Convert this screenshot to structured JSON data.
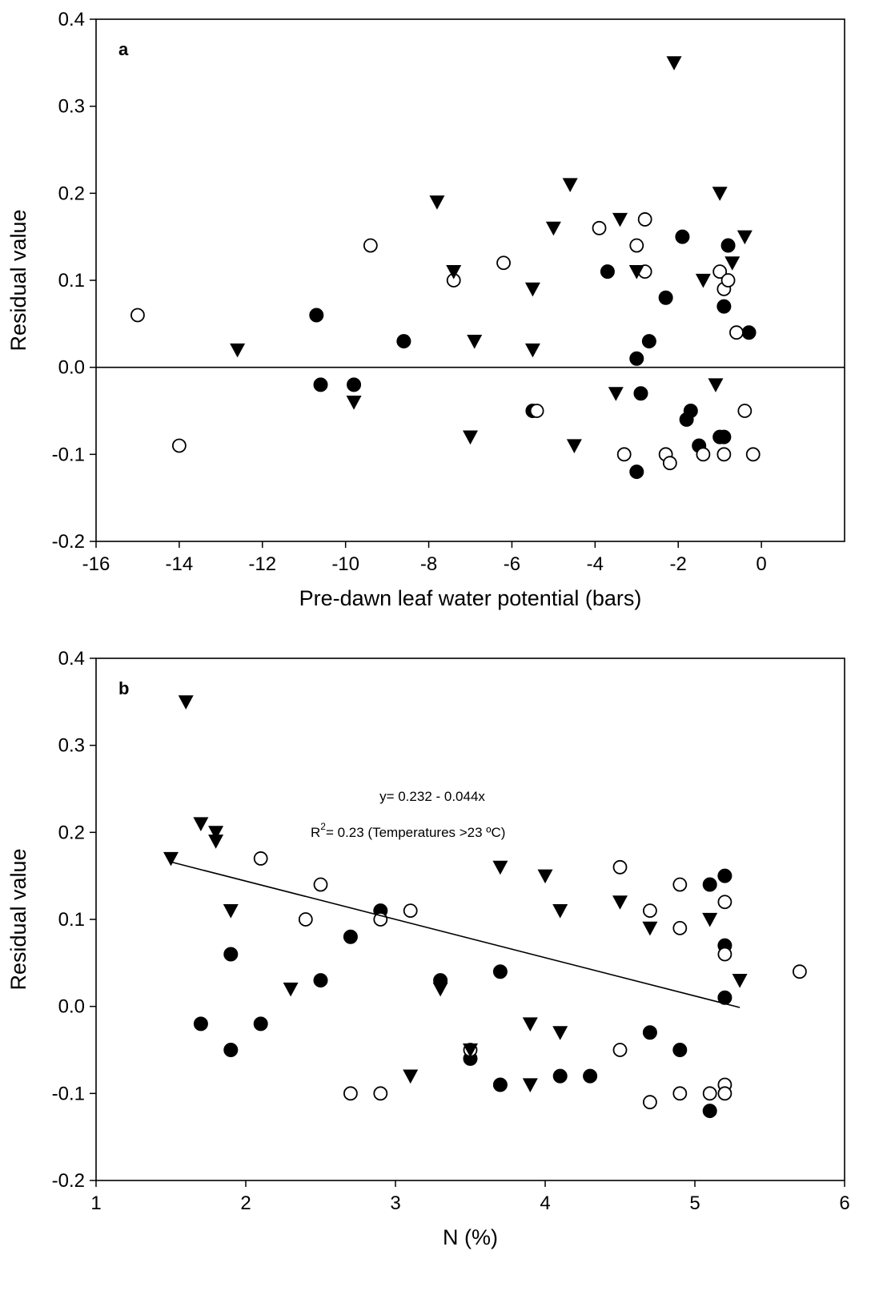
{
  "chart_data": [
    {
      "type": "scatter",
      "panel_label": "a",
      "xlabel": "Pre-dawn leaf water potential (bars)",
      "ylabel": "Residual value",
      "xlim": [
        -16,
        2
      ],
      "ylim": [
        -0.2,
        0.4
      ],
      "x_ticks": [
        -16,
        -14,
        -12,
        -10,
        -8,
        -6,
        -4,
        -2,
        0
      ],
      "y_ticks": [
        -0.2,
        -0.1,
        0.0,
        0.1,
        0.2,
        0.3,
        0.4
      ],
      "reference_line_y": 0,
      "grid": false,
      "series": [
        {
          "marker": "filled-circle",
          "points": [
            [
              -10.7,
              0.06
            ],
            [
              -10.6,
              -0.02
            ],
            [
              -9.8,
              -0.02
            ],
            [
              -8.6,
              0.03
            ],
            [
              -5.5,
              -0.05
            ],
            [
              -3.7,
              0.11
            ],
            [
              -3.0,
              0.01
            ],
            [
              -2.9,
              -0.03
            ],
            [
              -2.7,
              0.03
            ],
            [
              -2.3,
              0.08
            ],
            [
              -1.9,
              0.15
            ],
            [
              -1.8,
              -0.06
            ],
            [
              -1.7,
              -0.05
            ],
            [
              -1.5,
              -0.09
            ],
            [
              -1.0,
              -0.08
            ],
            [
              -0.9,
              -0.08
            ],
            [
              -0.9,
              0.07
            ],
            [
              -0.8,
              0.14
            ],
            [
              -0.3,
              0.04
            ],
            [
              -3.0,
              -0.12
            ]
          ]
        },
        {
          "marker": "open-circle",
          "points": [
            [
              -15.0,
              0.06
            ],
            [
              -14.0,
              -0.09
            ],
            [
              -9.4,
              0.14
            ],
            [
              -7.4,
              0.1
            ],
            [
              -6.2,
              0.12
            ],
            [
              -5.4,
              -0.05
            ],
            [
              -3.9,
              0.16
            ],
            [
              -3.3,
              -0.1
            ],
            [
              -3.0,
              0.14
            ],
            [
              -2.8,
              0.17
            ],
            [
              -2.8,
              0.11
            ],
            [
              -2.3,
              -0.1
            ],
            [
              -2.2,
              -0.11
            ],
            [
              -1.4,
              -0.1
            ],
            [
              -1.0,
              0.11
            ],
            [
              -0.9,
              0.09
            ],
            [
              -0.9,
              -0.1
            ],
            [
              -0.8,
              0.1
            ],
            [
              -0.6,
              0.04
            ],
            [
              -0.4,
              -0.05
            ],
            [
              -0.2,
              -0.1
            ]
          ]
        },
        {
          "marker": "filled-triangle-down",
          "points": [
            [
              -12.6,
              0.02
            ],
            [
              -9.8,
              -0.04
            ],
            [
              -7.8,
              0.19
            ],
            [
              -7.4,
              0.11
            ],
            [
              -7.0,
              -0.08
            ],
            [
              -6.9,
              0.03
            ],
            [
              -5.5,
              0.09
            ],
            [
              -5.5,
              0.02
            ],
            [
              -5.0,
              0.16
            ],
            [
              -4.6,
              0.21
            ],
            [
              -4.5,
              -0.09
            ],
            [
              -3.5,
              -0.03
            ],
            [
              -3.4,
              0.17
            ],
            [
              -3.0,
              0.11
            ],
            [
              -2.1,
              0.35
            ],
            [
              -1.4,
              0.1
            ],
            [
              -1.1,
              -0.02
            ],
            [
              -1.0,
              0.2
            ],
            [
              -0.7,
              0.12
            ],
            [
              -0.4,
              0.15
            ]
          ]
        }
      ]
    },
    {
      "type": "scatter",
      "panel_label": "b",
      "xlabel": "N (%)",
      "ylabel": "Residual value",
      "xlim": [
        1,
        6
      ],
      "ylim": [
        -0.2,
        0.4
      ],
      "x_ticks": [
        1,
        2,
        3,
        4,
        5,
        6
      ],
      "y_ticks": [
        -0.2,
        -0.1,
        0.0,
        0.1,
        0.2,
        0.3,
        0.4
      ],
      "grid": false,
      "annotations": [
        "y= 0.232 - 0.044x",
        "R",
        "2",
        "= 0.23 (Temperatures >23 ºC)"
      ],
      "fit_line": {
        "intercept": 0.232,
        "slope": -0.044,
        "x_range": [
          1.5,
          5.3
        ]
      },
      "series": [
        {
          "marker": "filled-circle",
          "points": [
            [
              1.7,
              -0.02
            ],
            [
              1.9,
              -0.05
            ],
            [
              1.9,
              0.06
            ],
            [
              2.1,
              -0.02
            ],
            [
              2.5,
              0.03
            ],
            [
              2.7,
              0.08
            ],
            [
              2.9,
              0.11
            ],
            [
              3.3,
              0.03
            ],
            [
              3.5,
              -0.06
            ],
            [
              3.7,
              0.04
            ],
            [
              3.7,
              -0.09
            ],
            [
              4.1,
              -0.08
            ],
            [
              4.3,
              -0.08
            ],
            [
              4.7,
              -0.03
            ],
            [
              4.9,
              -0.05
            ],
            [
              5.1,
              0.14
            ],
            [
              5.2,
              0.15
            ],
            [
              5.2,
              0.07
            ],
            [
              5.2,
              0.01
            ],
            [
              5.1,
              -0.12
            ]
          ]
        },
        {
          "marker": "open-circle",
          "points": [
            [
              2.1,
              0.17
            ],
            [
              2.4,
              0.1
            ],
            [
              2.5,
              0.14
            ],
            [
              2.7,
              -0.1
            ],
            [
              2.9,
              0.1
            ],
            [
              2.9,
              -0.1
            ],
            [
              3.1,
              0.11
            ],
            [
              3.5,
              -0.05
            ],
            [
              4.5,
              0.16
            ],
            [
              4.5,
              -0.05
            ],
            [
              4.7,
              0.11
            ],
            [
              4.7,
              -0.11
            ],
            [
              4.9,
              0.14
            ],
            [
              4.9,
              0.09
            ],
            [
              4.9,
              -0.1
            ],
            [
              5.1,
              -0.1
            ],
            [
              5.2,
              0.12
            ],
            [
              5.2,
              0.06
            ],
            [
              5.2,
              -0.09
            ],
            [
              5.2,
              -0.1
            ],
            [
              5.7,
              0.04
            ]
          ]
        },
        {
          "marker": "filled-triangle-down",
          "points": [
            [
              1.5,
              0.17
            ],
            [
              1.6,
              0.35
            ],
            [
              1.7,
              0.21
            ],
            [
              1.8,
              0.2
            ],
            [
              1.8,
              0.19
            ],
            [
              1.9,
              0.11
            ],
            [
              2.3,
              0.02
            ],
            [
              3.1,
              -0.08
            ],
            [
              3.3,
              0.02
            ],
            [
              3.5,
              -0.05
            ],
            [
              3.7,
              0.16
            ],
            [
              3.9,
              -0.09
            ],
            [
              3.9,
              -0.02
            ],
            [
              4.0,
              0.15
            ],
            [
              4.1,
              0.11
            ],
            [
              4.1,
              -0.03
            ],
            [
              4.5,
              0.12
            ],
            [
              4.7,
              0.09
            ],
            [
              5.1,
              0.1
            ],
            [
              5.3,
              0.03
            ]
          ]
        }
      ]
    }
  ]
}
